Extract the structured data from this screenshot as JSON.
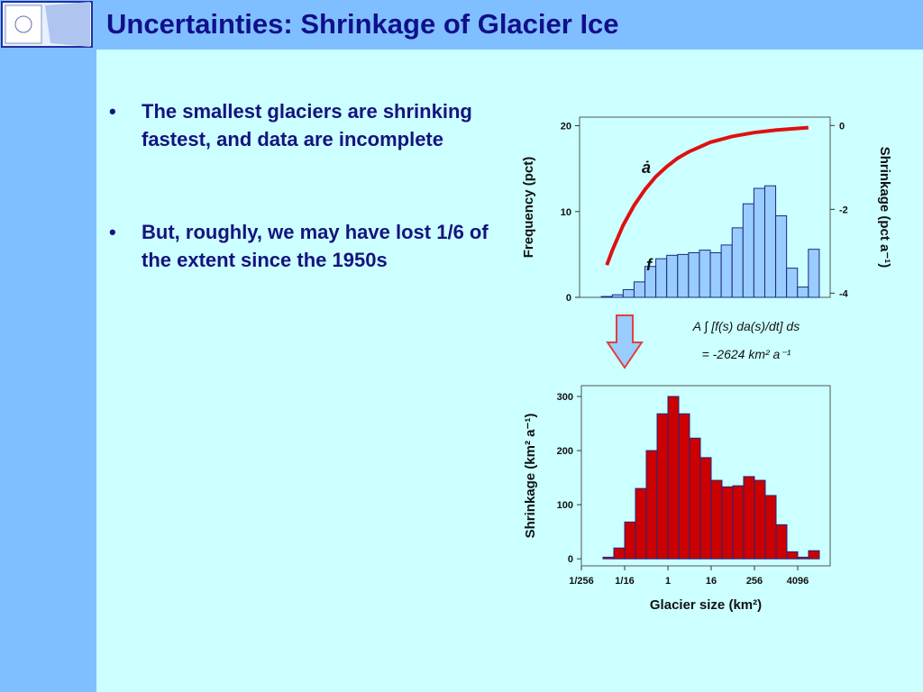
{
  "slide": {
    "title": "Uncertainties: Shrinkage of Glacier Ice",
    "bullets": [
      "The smallest glaciers are shrinking fastest, and data are incomplete",
      "But, roughly, we may have lost 1/6 of the extent since the 1950s"
    ]
  },
  "annotations": [
    "A ∫ [f(s) da(s)/dt] ds",
    "= -2624 km² a⁻¹"
  ],
  "chart_data": [
    {
      "type": "histogram",
      "log_base": 2,
      "bins": [
        0.015625,
        0.03125,
        0.0625,
        0.125,
        0.25,
        0.5,
        1,
        2,
        4,
        8,
        16,
        32,
        64,
        128,
        256,
        512,
        1024,
        2048,
        4096,
        8192,
        16384
      ],
      "values": [
        0.1,
        0.3,
        0.9,
        1.8,
        3.6,
        4.5,
        4.9,
        5.0,
        5.2,
        5.5,
        5.2,
        6.1,
        8.1,
        10.9,
        12.7,
        13.0,
        9.5,
        3.4,
        1.2,
        5.6
      ],
      "color": "#99ccff",
      "ylabel": "Frequency (pct)",
      "ylim": [
        0,
        21
      ],
      "yticks": [
        0,
        10,
        20
      ],
      "y2label": "Shrinkage (pct a⁻¹)",
      "y2lim": [
        -4.1,
        0.2
      ],
      "y2ticks": [
        0,
        -2,
        -4
      ],
      "xlim": [
        0.00390625,
        32768
      ],
      "lines": [
        {
          "axis": "y2",
          "color": "#dd1111",
          "x": [
            0.0221,
            0.03125,
            0.0625,
            0.125,
            0.25,
            0.5,
            1,
            2,
            4,
            16,
            64,
            256,
            1024,
            8192
          ],
          "values": [
            -3.33,
            -2.98,
            -2.38,
            -1.91,
            -1.53,
            -1.22,
            -0.98,
            -0.78,
            -0.63,
            -0.4,
            -0.26,
            -0.17,
            -0.11,
            -0.05
          ]
        }
      ],
      "annotations": [
        "ȧ",
        "f"
      ]
    },
    {
      "type": "histogram",
      "log_base": 2,
      "bins": [
        0.015625,
        0.03125,
        0.0625,
        0.125,
        0.25,
        0.5,
        1,
        2,
        4,
        8,
        16,
        32,
        64,
        128,
        256,
        512,
        1024,
        2048,
        4096,
        8192,
        16384
      ],
      "values": [
        3,
        20,
        68,
        130,
        200,
        268,
        300,
        268,
        223,
        187,
        145,
        133,
        135,
        152,
        145,
        117,
        63,
        13,
        3,
        15
      ],
      "color": "#cc0000",
      "ylabel": "Shrinkage (km² a⁻¹)",
      "ylim": [
        -13,
        320
      ],
      "yticks": [
        0,
        100,
        200,
        300
      ],
      "xlabel": "Glacier size (km²)",
      "xlim": [
        0.00390625,
        32768
      ],
      "xticks": [
        {
          "value": 0.00390625,
          "label": "1/256"
        },
        {
          "value": 0.0625,
          "label": "1/16"
        },
        1,
        16,
        256,
        4096
      ]
    }
  ]
}
